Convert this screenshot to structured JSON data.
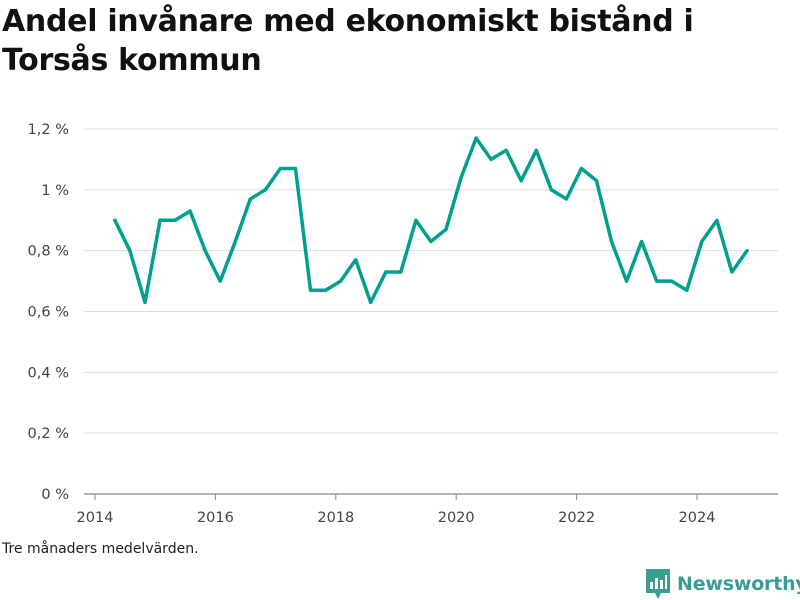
{
  "title": "Andel invånare med ekonomiskt bistånd i Torsås kommun",
  "note": "Tre månaders medelvärden.",
  "brand": "Newsworthy",
  "colors": {
    "line": "#00a08e",
    "grid": "#dcdcdc",
    "brand": "#3a9d92"
  },
  "chart_data": {
    "type": "line",
    "title": "Andel invånare med ekonomiskt bistånd i Torsås kommun",
    "xlabel": "",
    "ylabel": "",
    "ylim": [
      0,
      1.2
    ],
    "xlim": [
      2014,
      2025.3
    ],
    "y_ticks": [
      {
        "value": 0,
        "label": "0 %"
      },
      {
        "value": 0.2,
        "label": "0,2 %"
      },
      {
        "value": 0.4,
        "label": "0,4 %"
      },
      {
        "value": 0.6,
        "label": "0,6 %"
      },
      {
        "value": 0.8,
        "label": "0,8 %"
      },
      {
        "value": 1.0,
        "label": "1 %"
      },
      {
        "value": 1.2,
        "label": "1,2 %"
      }
    ],
    "x_ticks": [
      {
        "value": 2014,
        "label": "2014"
      },
      {
        "value": 2016,
        "label": "2016"
      },
      {
        "value": 2018,
        "label": "2018"
      },
      {
        "value": 2020,
        "label": "2020"
      },
      {
        "value": 2022,
        "label": "2022"
      },
      {
        "value": 2024,
        "label": "2024"
      }
    ],
    "grid": true,
    "legend": "none",
    "series": [
      {
        "x": [
          2014.33,
          2014.58,
          2014.83,
          2015.08,
          2015.33,
          2015.58,
          2015.83,
          2016.08,
          2016.33,
          2016.58,
          2016.83,
          2017.08,
          2017.33,
          2017.58,
          2017.83,
          2018.08,
          2018.33,
          2018.58,
          2018.83,
          2019.08,
          2019.33,
          2019.58,
          2019.83,
          2020.08,
          2020.33,
          2020.58,
          2020.83,
          2021.08,
          2021.33,
          2021.58,
          2021.83,
          2022.08,
          2022.33,
          2022.58,
          2022.83,
          2023.08,
          2023.33,
          2023.58,
          2023.83,
          2024.08,
          2024.33,
          2024.58,
          2024.83
        ],
        "y": [
          0.9,
          0.8,
          0.63,
          0.9,
          0.9,
          0.93,
          0.8,
          0.7,
          0.83,
          0.97,
          1.0,
          1.07,
          1.07,
          0.67,
          0.67,
          0.7,
          0.77,
          0.63,
          0.73,
          0.73,
          0.9,
          0.83,
          0.87,
          1.04,
          1.17,
          1.1,
          1.13,
          1.03,
          1.13,
          1.0,
          0.97,
          1.07,
          1.03,
          0.83,
          0.7,
          0.83,
          0.7,
          0.7,
          0.67,
          0.83,
          0.9,
          0.73,
          0.8
        ]
      }
    ]
  }
}
